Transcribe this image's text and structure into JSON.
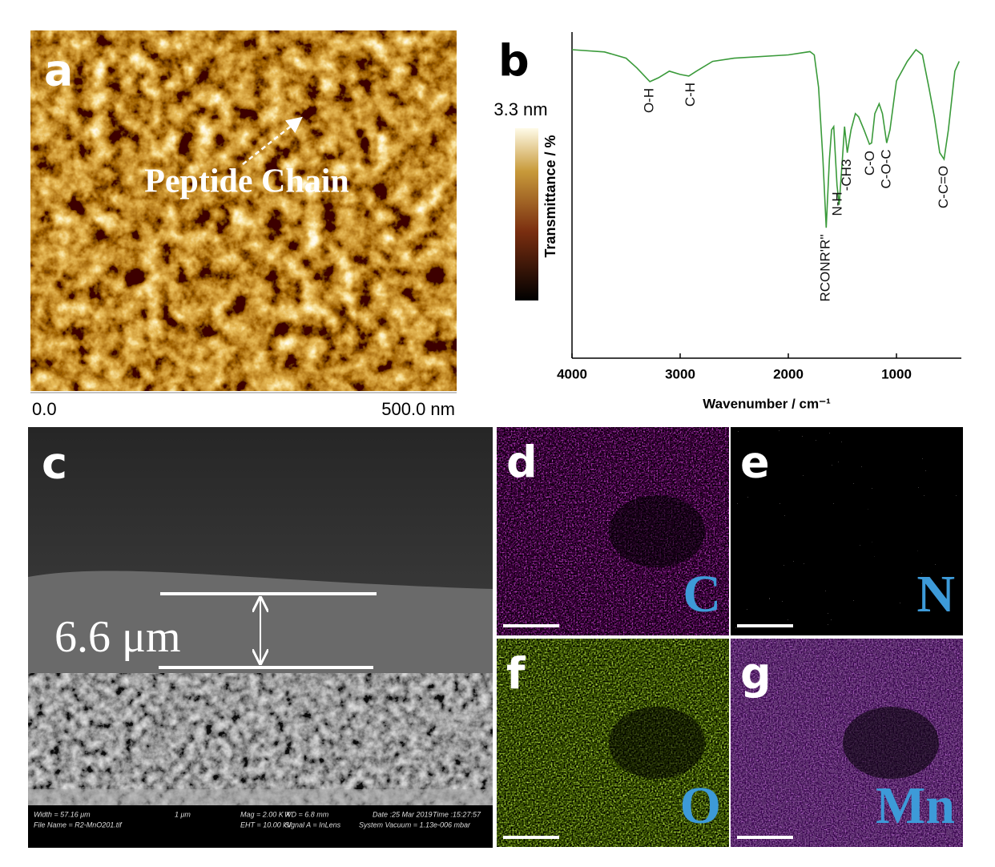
{
  "panel_a": {
    "label": "a",
    "annotation": "Peptide Chain",
    "scale_start": "0.0",
    "scale_end": "500.0 nm",
    "colorbar_max": "3.3 nm"
  },
  "chart_data": {
    "type": "line",
    "label": "b",
    "x_label": "Wavenumber / cm⁻¹",
    "y_label": "Transmittance / %",
    "xlim": [
      4000,
      400
    ],
    "xticks": [
      4000,
      3000,
      2000,
      1000
    ],
    "ylim": [
      0,
      100
    ],
    "color": "#3a9a3a",
    "x": [
      4000,
      3700,
      3500,
      3400,
      3280,
      3200,
      3100,
      3000,
      2920,
      2850,
      2700,
      2500,
      2000,
      1800,
      1760,
      1720,
      1680,
      1650,
      1620,
      1600,
      1580,
      1550,
      1530,
      1500,
      1480,
      1455,
      1420,
      1380,
      1350,
      1300,
      1250,
      1230,
      1200,
      1160,
      1130,
      1090,
      1060,
      1000,
      900,
      820,
      760,
      700,
      650,
      600,
      560,
      520,
      460,
      420
    ],
    "values": [
      94.6,
      93.9,
      92,
      89,
      84.8,
      86,
      88,
      87,
      86.5,
      88,
      91,
      92,
      93,
      94,
      93,
      83,
      61,
      40,
      61,
      70,
      71,
      53,
      47,
      61,
      71,
      63,
      70,
      75,
      74,
      70,
      65.6,
      66,
      75,
      78,
      75,
      66,
      70,
      85,
      91,
      94.6,
      93,
      83,
      74,
      63,
      61,
      70,
      88,
      91
    ],
    "annotations": [
      {
        "text": "O-H",
        "x": 3280
      },
      {
        "text": "C-H",
        "x": 2900
      },
      {
        "text": "RCONR'R''",
        "x": 1650
      },
      {
        "text": "N-H",
        "x": 1540
      },
      {
        "text": "-CH3",
        "x": 1455
      },
      {
        "text": "C-O",
        "x": 1240
      },
      {
        "text": "C-O-C",
        "x": 1090
      },
      {
        "text": "C-C=O",
        "x": 560
      }
    ]
  },
  "panel_c": {
    "label": "c",
    "thickness": "6.6 μm",
    "info": [
      "Width = 57.16 μm",
      "File Name = R2-MnO201.tif",
      "1 μm",
      "Mag = 2.00 K X",
      "EHT = 10.00 kV",
      "WD = 6.8 mm",
      "Signal A = InLens",
      "Date :25 Mar 2019",
      "System Vacuum = 1.13e-006 mbar",
      "Time :15:27:57"
    ]
  },
  "maps": [
    {
      "label": "d",
      "element": "C"
    },
    {
      "label": "e",
      "element": "N"
    },
    {
      "label": "f",
      "element": "O"
    },
    {
      "label": "g",
      "element": "Mn"
    }
  ]
}
